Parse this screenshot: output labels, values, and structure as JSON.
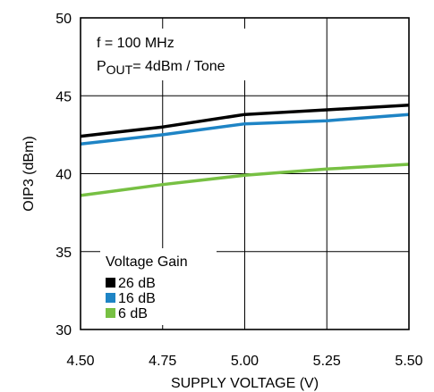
{
  "chart_data": {
    "type": "line",
    "xlabel": "SUPPLY VOLTAGE (V)",
    "ylabel": "OIP3 (dBm)",
    "xlim": [
      4.5,
      5.5
    ],
    "ylim": [
      30,
      50
    ],
    "xticks": [
      "4.50",
      "4.75",
      "5.00",
      "5.25",
      "5.50"
    ],
    "yticks": [
      "30",
      "35",
      "40",
      "45",
      "50"
    ],
    "grid": true,
    "annotations": {
      "freq": "f = 100 MHz",
      "pout_main": "P",
      "pout_sub": "OUT",
      "pout_rest": "= 4dBm / Tone"
    },
    "legend": {
      "title": "Voltage Gain",
      "placement": "bottom-left"
    },
    "x": [
      4.5,
      4.75,
      5.0,
      5.25,
      5.5
    ],
    "series": [
      {
        "name": "26 dB",
        "color": "#000000",
        "values": [
          42.4,
          43.0,
          43.8,
          44.1,
          44.4
        ]
      },
      {
        "name": "16 dB",
        "color": "#1e84c5",
        "values": [
          41.9,
          42.5,
          43.2,
          43.4,
          43.8
        ]
      },
      {
        "name": "6 dB",
        "color": "#77c043",
        "values": [
          38.6,
          39.3,
          39.9,
          40.3,
          40.6
        ]
      }
    ]
  }
}
